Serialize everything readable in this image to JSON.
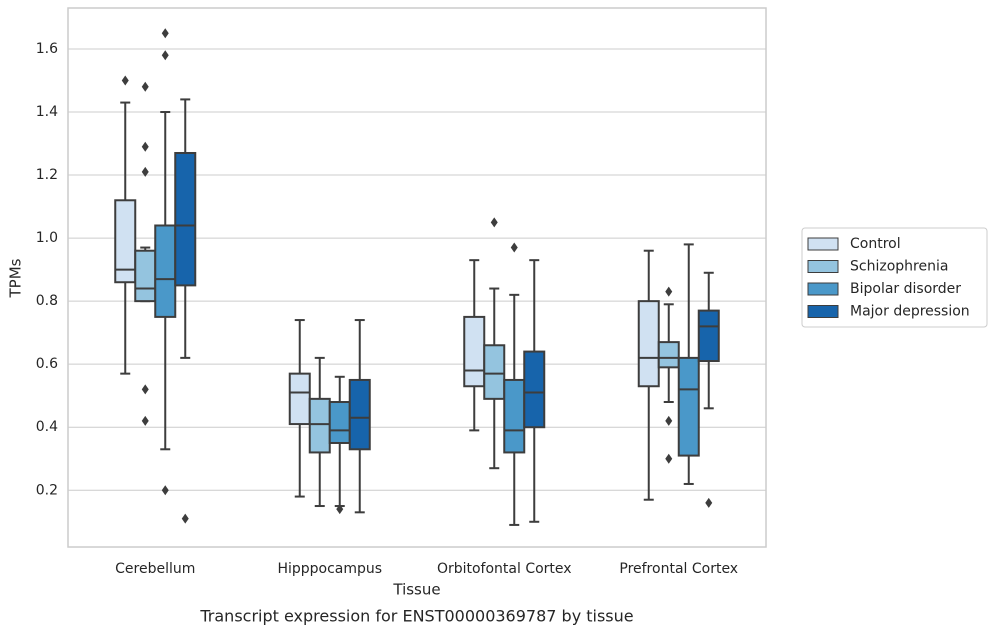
{
  "chart_data": {
    "type": "box",
    "title": "Transcript expression for ENST00000369787 by tissue",
    "x_label": "Tissue",
    "y_label": "TPMs",
    "categories": [
      "Cerebellum",
      "Hipppocampus",
      "Orbitofontal Cortex",
      "Prefrontal Cortex"
    ],
    "ylim": [
      0.02,
      1.73
    ],
    "yticks": [
      {
        "value": 0.2,
        "label": "0.2"
      },
      {
        "value": 0.4,
        "label": "0.4"
      },
      {
        "value": 0.6,
        "label": "0.6"
      },
      {
        "value": 0.8,
        "label": "0.8"
      },
      {
        "value": 1.0,
        "label": "1.0"
      },
      {
        "value": 1.2,
        "label": "1.2"
      },
      {
        "value": 1.4,
        "label": "1.4"
      },
      {
        "value": 1.6,
        "label": "1.6"
      }
    ],
    "grid": true,
    "legend": "right",
    "series": [
      {
        "name": "Control",
        "color": "#d0e1f2",
        "whislo": [
          0.57,
          0.18,
          0.39,
          0.17
        ],
        "q1": [
          0.86,
          0.41,
          0.53,
          0.53
        ],
        "median": [
          0.9,
          0.51,
          0.58,
          0.62
        ],
        "q3": [
          1.12,
          0.57,
          0.75,
          0.8
        ],
        "whishi": [
          1.43,
          0.74,
          0.93,
          0.96
        ],
        "outliers": [
          [
            1.5
          ],
          [],
          [],
          []
        ]
      },
      {
        "name": "Schizophrenia",
        "color": "#94c4df",
        "whislo": [
          0.8,
          0.15,
          0.27,
          0.48
        ],
        "q1": [
          0.8,
          0.32,
          0.49,
          0.59
        ],
        "median": [
          0.84,
          0.41,
          0.57,
          0.62
        ],
        "q3": [
          0.96,
          0.49,
          0.66,
          0.67
        ],
        "whishi": [
          0.97,
          0.62,
          0.84,
          0.79
        ],
        "outliers": [
          [
            1.48,
            1.29,
            1.21,
            0.52,
            0.42
          ],
          [],
          [
            1.05
          ],
          [
            0.83,
            0.42,
            0.3
          ]
        ]
      },
      {
        "name": "Bipolar disorder",
        "color": "#4a98c9",
        "whislo": [
          0.33,
          0.15,
          0.09,
          0.22
        ],
        "q1": [
          0.75,
          0.35,
          0.32,
          0.31
        ],
        "median": [
          0.87,
          0.39,
          0.39,
          0.52
        ],
        "q3": [
          1.04,
          0.48,
          0.55,
          0.62
        ],
        "whishi": [
          1.4,
          0.56,
          0.82,
          0.98
        ],
        "outliers": [
          [
            1.65,
            1.58,
            0.2
          ],
          [
            0.14
          ],
          [
            0.97
          ],
          []
        ]
      },
      {
        "name": "Major depression",
        "color": "#1764ab",
        "whislo": [
          0.62,
          0.13,
          0.1,
          0.46
        ],
        "q1": [
          0.85,
          0.33,
          0.4,
          0.61
        ],
        "median": [
          1.04,
          0.43,
          0.51,
          0.72
        ],
        "q3": [
          1.27,
          0.55,
          0.64,
          0.77
        ],
        "whishi": [
          1.44,
          0.74,
          0.93,
          0.89
        ],
        "outliers": [
          [
            0.11
          ],
          [],
          [],
          [
            0.16
          ]
        ]
      }
    ]
  }
}
